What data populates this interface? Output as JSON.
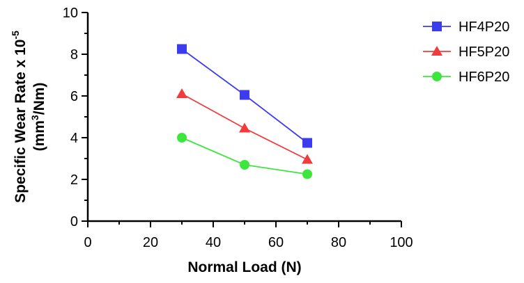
{
  "chart_data": {
    "type": "line",
    "title": "",
    "xlabel": "Normal Load (N)",
    "ylabel": {
      "line1_main": "Specific Wear Rate x 10",
      "line1_sup": "-5",
      "line2_open": "(mm",
      "line2_sup": "3",
      "line2_close": "/Nm)"
    },
    "xlim": [
      0,
      100
    ],
    "ylim": [
      0,
      10
    ],
    "xticks": [
      0,
      20,
      40,
      60,
      80,
      100
    ],
    "yticks": [
      0,
      2,
      4,
      6,
      8,
      10
    ],
    "x": [
      30,
      50,
      70
    ],
    "grid": false,
    "legend_position": "top-right",
    "series": [
      {
        "name": "HF4P20",
        "values": [
          8.25,
          6.05,
          3.75
        ],
        "color": "#3b3bf0",
        "marker": "square"
      },
      {
        "name": "HF5P20",
        "values": [
          6.1,
          4.45,
          2.95
        ],
        "color": "#f03c3c",
        "marker": "triangle"
      },
      {
        "name": "HF6P20",
        "values": [
          4.0,
          2.7,
          2.25
        ],
        "color": "#3ce63c",
        "marker": "circle"
      }
    ]
  }
}
